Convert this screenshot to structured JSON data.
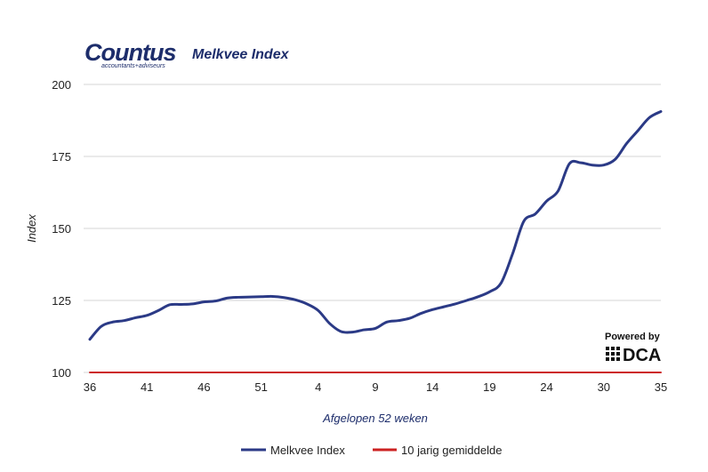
{
  "logo": {
    "name": "Countus",
    "tagline": "accountants+adviseurs"
  },
  "powered_by": {
    "label": "Powered by",
    "brand": "DCA"
  },
  "colors": {
    "index": "#2b3a86",
    "average": "#cc2222",
    "grid": "#d4d4d4",
    "brand": "#1d2d6b"
  },
  "chart_data": {
    "type": "line",
    "title": "Melkvee Index",
    "xlabel": "Afgelopen 52 weken",
    "ylabel": "Index",
    "ylim": [
      100,
      200
    ],
    "yticks": [
      "100",
      "125",
      "150",
      "175",
      "200"
    ],
    "x_tick_labels": [
      "36",
      "41",
      "46",
      "51",
      "4",
      "9",
      "14",
      "19",
      "24",
      "30",
      "35"
    ],
    "grid": true,
    "legend_position": "bottom",
    "series": [
      {
        "name": "Melkvee Index",
        "color": "#2b3a86",
        "values": [
          111.5,
          116,
          117.5,
          118,
          119,
          119.8,
          121.5,
          123.5,
          123.6,
          123.8,
          124.5,
          124.8,
          125.8,
          126.1,
          126.2,
          126.3,
          126.4,
          126,
          125.2,
          123.8,
          121.5,
          117,
          114.2,
          114,
          114.8,
          115.3,
          117.5,
          118,
          118.8,
          120.5,
          121.8,
          122.8,
          123.8,
          125,
          126.3,
          128,
          131,
          141,
          152.5,
          155,
          159.5,
          163,
          172.5,
          172.8,
          172,
          172,
          174,
          179.5,
          184,
          188.5,
          190.6
        ]
      },
      {
        "name": "10 jarig gemiddelde",
        "color": "#cc2222",
        "values": [
          100,
          100
        ]
      }
    ]
  }
}
